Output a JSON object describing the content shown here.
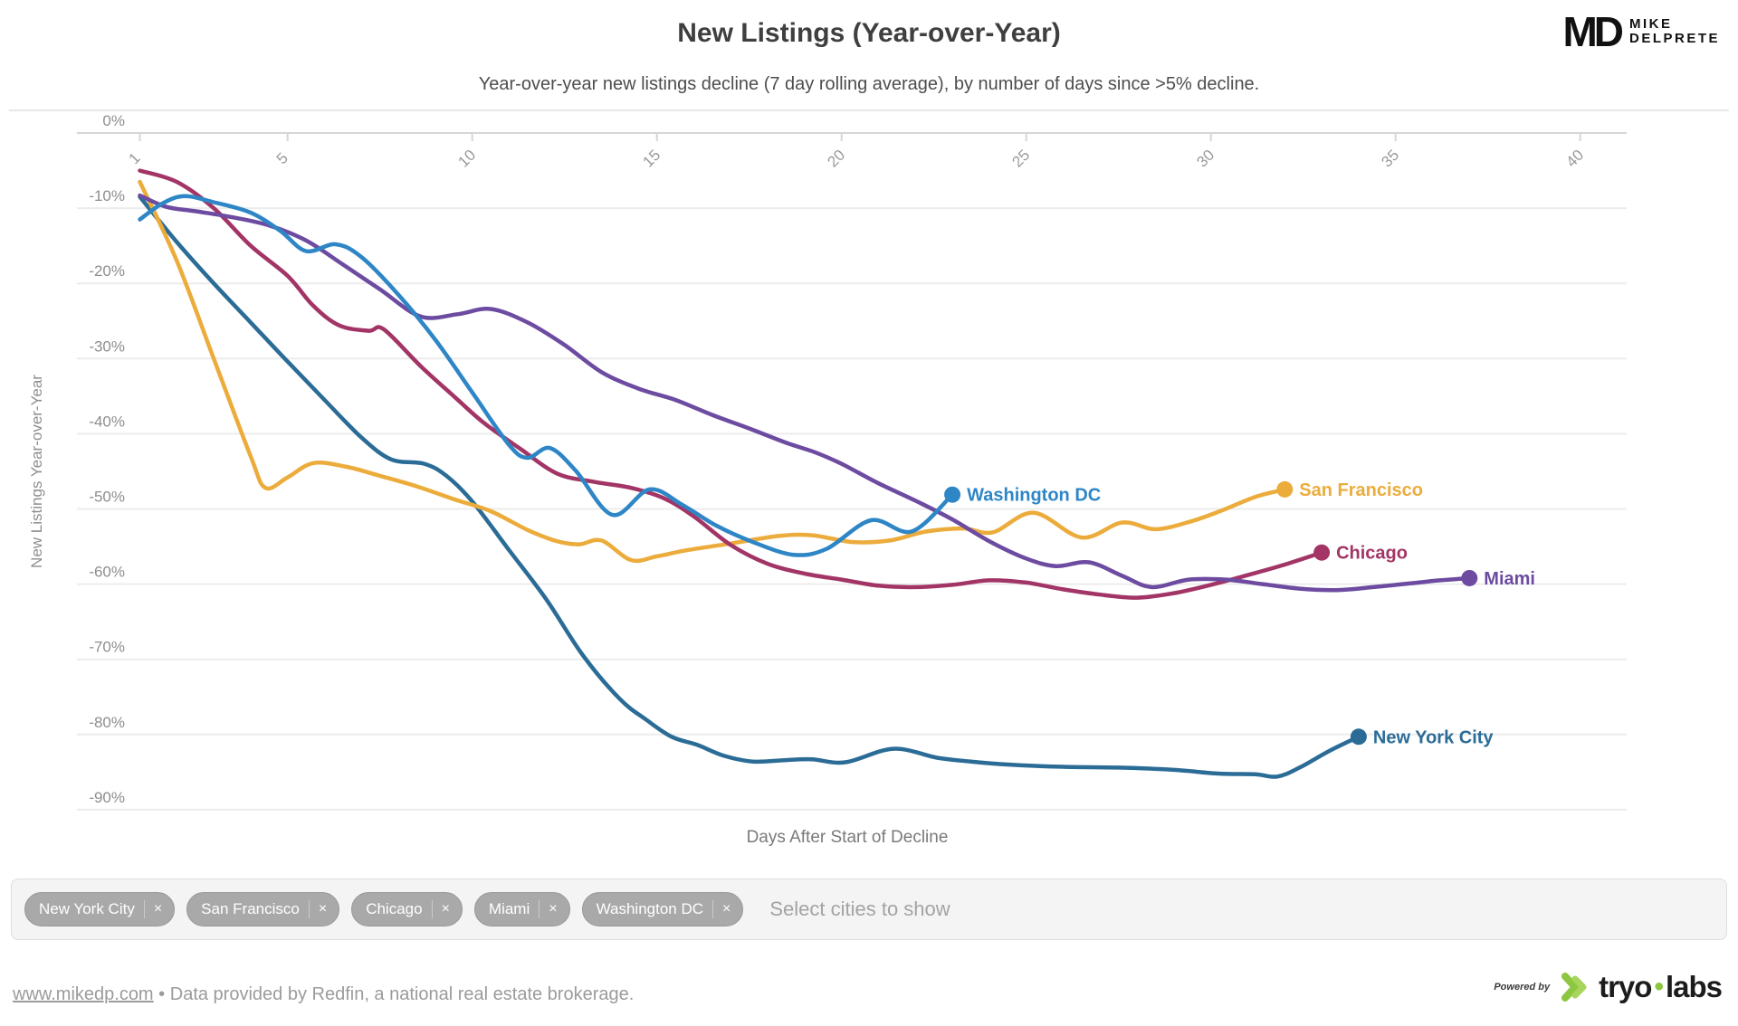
{
  "header": {
    "title": "New Listings (Year-over-Year)",
    "subtitle": "Year-over-year new listings decline (7 day rolling average), by number of days since >5% decline.",
    "logo": {
      "monogram": "MD",
      "name_line1": "MIKE",
      "name_line2": "DELPRETE"
    }
  },
  "chart_data": {
    "type": "line",
    "title": "New Listings (Year-over-Year)",
    "xlabel": "Days After Start of Decline",
    "ylabel": "New Listings Year-over-Year",
    "xlim": [
      1,
      41
    ],
    "ylim": [
      -90,
      0
    ],
    "x_ticks": [
      1,
      5,
      10,
      15,
      20,
      25,
      30,
      35,
      40
    ],
    "y_ticks": [
      0,
      -10,
      -20,
      -30,
      -40,
      -50,
      -60,
      -70,
      -80,
      -90
    ],
    "y_tick_suffix": "%",
    "grid": true,
    "legend_position": "end-of-line-labels",
    "series": [
      {
        "name": "New York City",
        "color": "#2b6c97",
        "points": [
          [
            1,
            -8.5
          ],
          [
            2,
            -14.5
          ],
          [
            3,
            -20
          ],
          [
            4,
            -25.2
          ],
          [
            5,
            -30.4
          ],
          [
            6,
            -35.5
          ],
          [
            7,
            -40.5
          ],
          [
            7.8,
            -43.4
          ],
          [
            8.7,
            -44
          ],
          [
            9.3,
            -45.6
          ],
          [
            10,
            -49
          ],
          [
            11,
            -55.5
          ],
          [
            12,
            -62
          ],
          [
            13,
            -69.5
          ],
          [
            14,
            -75.3
          ],
          [
            14.7,
            -78
          ],
          [
            15.4,
            -80.3
          ],
          [
            16.1,
            -81.4
          ],
          [
            16.8,
            -82.8
          ],
          [
            17.6,
            -83.6
          ],
          [
            18.5,
            -83.4
          ],
          [
            19.2,
            -83.3
          ],
          [
            20.1,
            -83.7
          ],
          [
            21.4,
            -81.9
          ],
          [
            22.6,
            -83.1
          ],
          [
            23.5,
            -83.6
          ],
          [
            24.5,
            -84
          ],
          [
            26,
            -84.3
          ],
          [
            27.5,
            -84.4
          ],
          [
            29,
            -84.7
          ],
          [
            30.2,
            -85.2
          ],
          [
            31.2,
            -85.3
          ],
          [
            31.8,
            -85.6
          ],
          [
            32.4,
            -84.4
          ],
          [
            33.2,
            -82.2
          ],
          [
            34,
            -80.3
          ]
        ]
      },
      {
        "name": "San Francisco",
        "color": "#ecac3c",
        "points": [
          [
            1,
            -6.5
          ],
          [
            2,
            -17
          ],
          [
            3,
            -30
          ],
          [
            4,
            -43
          ],
          [
            4.4,
            -47.2
          ],
          [
            5,
            -45.8
          ],
          [
            5.7,
            -43.9
          ],
          [
            6.6,
            -44.4
          ],
          [
            7.5,
            -45.6
          ],
          [
            8.5,
            -47
          ],
          [
            9.5,
            -48.7
          ],
          [
            10.5,
            -50.3
          ],
          [
            11.5,
            -52.8
          ],
          [
            12.3,
            -54.3
          ],
          [
            12.9,
            -54.7
          ],
          [
            13.5,
            -54.2
          ],
          [
            14.3,
            -56.8
          ],
          [
            15,
            -56.3
          ],
          [
            15.8,
            -55.5
          ],
          [
            17,
            -54.6
          ],
          [
            18.3,
            -53.6
          ],
          [
            19.2,
            -53.5
          ],
          [
            20.3,
            -54.4
          ],
          [
            21.3,
            -54.2
          ],
          [
            22.3,
            -53
          ],
          [
            23.3,
            -52.6
          ],
          [
            24.1,
            -53.1
          ],
          [
            25.2,
            -50.5
          ],
          [
            26.5,
            -53.8
          ],
          [
            27.6,
            -51.8
          ],
          [
            28.5,
            -52.7
          ],
          [
            29.5,
            -51.6
          ],
          [
            30.3,
            -50.2
          ],
          [
            31.2,
            -48.4
          ],
          [
            32,
            -47.4
          ]
        ]
      },
      {
        "name": "Chicago",
        "color": "#a23566",
        "points": [
          [
            1,
            -5
          ],
          [
            2,
            -6.5
          ],
          [
            3,
            -10
          ],
          [
            4,
            -15
          ],
          [
            5,
            -19
          ],
          [
            5.7,
            -23
          ],
          [
            6.4,
            -25.6
          ],
          [
            7.2,
            -26.3
          ],
          [
            7.6,
            -26.1
          ],
          [
            8.6,
            -31
          ],
          [
            9.5,
            -35
          ],
          [
            10.3,
            -38.5
          ],
          [
            11.3,
            -42
          ],
          [
            12.3,
            -45.3
          ],
          [
            13.3,
            -46.4
          ],
          [
            14.3,
            -47.2
          ],
          [
            15.2,
            -48.6
          ],
          [
            16,
            -51
          ],
          [
            17,
            -54.8
          ],
          [
            18,
            -57.3
          ],
          [
            19,
            -58.6
          ],
          [
            20,
            -59.4
          ],
          [
            21,
            -60.2
          ],
          [
            22,
            -60.4
          ],
          [
            23,
            -60.1
          ],
          [
            24,
            -59.5
          ],
          [
            25,
            -59.8
          ],
          [
            26,
            -60.7
          ],
          [
            27,
            -61.4
          ],
          [
            28,
            -61.8
          ],
          [
            29,
            -61.2
          ],
          [
            30,
            -60.1
          ],
          [
            31,
            -58.8
          ],
          [
            32,
            -57.4
          ],
          [
            33,
            -55.8
          ]
        ]
      },
      {
        "name": "Miami",
        "color": "#6c4ba1",
        "points": [
          [
            1,
            -8.3
          ],
          [
            1.7,
            -9.8
          ],
          [
            2.5,
            -10.4
          ],
          [
            3.5,
            -11.2
          ],
          [
            4.5,
            -12.3
          ],
          [
            5.5,
            -14.3
          ],
          [
            6.5,
            -17.5
          ],
          [
            7.5,
            -20.8
          ],
          [
            8.6,
            -24.4
          ],
          [
            9.6,
            -24.1
          ],
          [
            10.5,
            -23.4
          ],
          [
            11.5,
            -25.2
          ],
          [
            12.5,
            -28.2
          ],
          [
            13.5,
            -31.8
          ],
          [
            14.5,
            -34
          ],
          [
            15.5,
            -35.5
          ],
          [
            16.5,
            -37.5
          ],
          [
            17.5,
            -39.3
          ],
          [
            18.5,
            -41.2
          ],
          [
            19.3,
            -42.5
          ],
          [
            20,
            -44
          ],
          [
            21,
            -46.6
          ],
          [
            22,
            -48.9
          ],
          [
            23,
            -51.4
          ],
          [
            24,
            -54.3
          ],
          [
            25,
            -56.6
          ],
          [
            25.8,
            -57.6
          ],
          [
            26.7,
            -57.1
          ],
          [
            27.6,
            -58.9
          ],
          [
            28.4,
            -60.4
          ],
          [
            29.4,
            -59.4
          ],
          [
            30.4,
            -59.4
          ],
          [
            31.4,
            -60
          ],
          [
            32.4,
            -60.6
          ],
          [
            33.4,
            -60.8
          ],
          [
            34.4,
            -60.4
          ],
          [
            35.4,
            -59.9
          ],
          [
            36.2,
            -59.5
          ],
          [
            37,
            -59.2
          ]
        ]
      },
      {
        "name": "Washington DC",
        "color": "#2e86c6",
        "points": [
          [
            1,
            -11.5
          ],
          [
            1.6,
            -9.4
          ],
          [
            2.2,
            -8.4
          ],
          [
            3,
            -9.2
          ],
          [
            4,
            -10.6
          ],
          [
            4.8,
            -13
          ],
          [
            5.5,
            -15.7
          ],
          [
            6.3,
            -14.8
          ],
          [
            7,
            -16.5
          ],
          [
            8,
            -21.5
          ],
          [
            9,
            -27.5
          ],
          [
            10,
            -34.5
          ],
          [
            11,
            -41.5
          ],
          [
            11.5,
            -43.2
          ],
          [
            12.1,
            -41.9
          ],
          [
            12.8,
            -44.9
          ],
          [
            13.8,
            -50.8
          ],
          [
            14.8,
            -47.4
          ],
          [
            15.7,
            -49.5
          ],
          [
            16.6,
            -52.2
          ],
          [
            17.6,
            -54.4
          ],
          [
            18.7,
            -56.1
          ],
          [
            19.6,
            -55.3
          ],
          [
            20.8,
            -51.5
          ],
          [
            21.9,
            -53
          ],
          [
            23,
            -48.1
          ]
        ]
      }
    ]
  },
  "city_selector": {
    "chips": [
      {
        "label": "New York City"
      },
      {
        "label": "San Francisco"
      },
      {
        "label": "Chicago"
      },
      {
        "label": "Miami"
      },
      {
        "label": "Washington DC"
      }
    ],
    "remove_icon": "×",
    "placeholder": "Select cities to show"
  },
  "footer": {
    "link": "www.mikedp.com",
    "separator": "•",
    "text": "Data provided by Redfin, a national real estate brokerage.",
    "powered_by": "Powered by",
    "brand": {
      "part1": "tryo",
      "dot": "•",
      "part2": "labs"
    }
  }
}
